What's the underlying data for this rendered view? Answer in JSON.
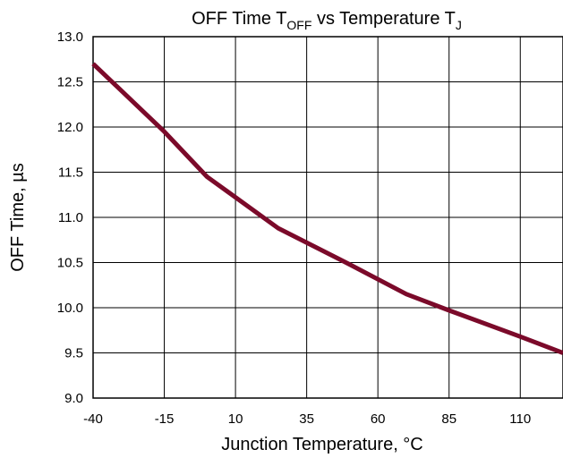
{
  "chart_data": {
    "type": "line",
    "title": {
      "main": "OFF Time T",
      "sub1": "OFF",
      "mid": " vs Temperature T",
      "sub2": "J"
    },
    "xlabel": "Junction Temperature, °C",
    "ylabel": "OFF Time, µs",
    "xlim": [
      -40,
      125
    ],
    "ylim": [
      9.0,
      13.0
    ],
    "x_ticks": [
      -40,
      -15,
      10,
      35,
      60,
      85,
      110
    ],
    "x_tick_labels": [
      "-40",
      "-15",
      "10",
      "35",
      "60",
      "85",
      "110"
    ],
    "y_ticks": [
      9.0,
      9.5,
      10.0,
      10.5,
      11.0,
      11.5,
      12.0,
      12.5,
      13.0
    ],
    "y_tick_labels": [
      "9.0",
      "9.5",
      "10.0",
      "10.5",
      "11.0",
      "11.5",
      "12.0",
      "12.5",
      "13.0"
    ],
    "grid": true,
    "series": [
      {
        "color": "#7b0a2a",
        "x": [
          -40,
          -15,
          0,
          25,
          50,
          70,
          85,
          110,
          125
        ],
        "y": [
          12.7,
          11.95,
          11.45,
          10.88,
          10.48,
          10.15,
          9.97,
          9.68,
          9.5
        ]
      }
    ]
  }
}
